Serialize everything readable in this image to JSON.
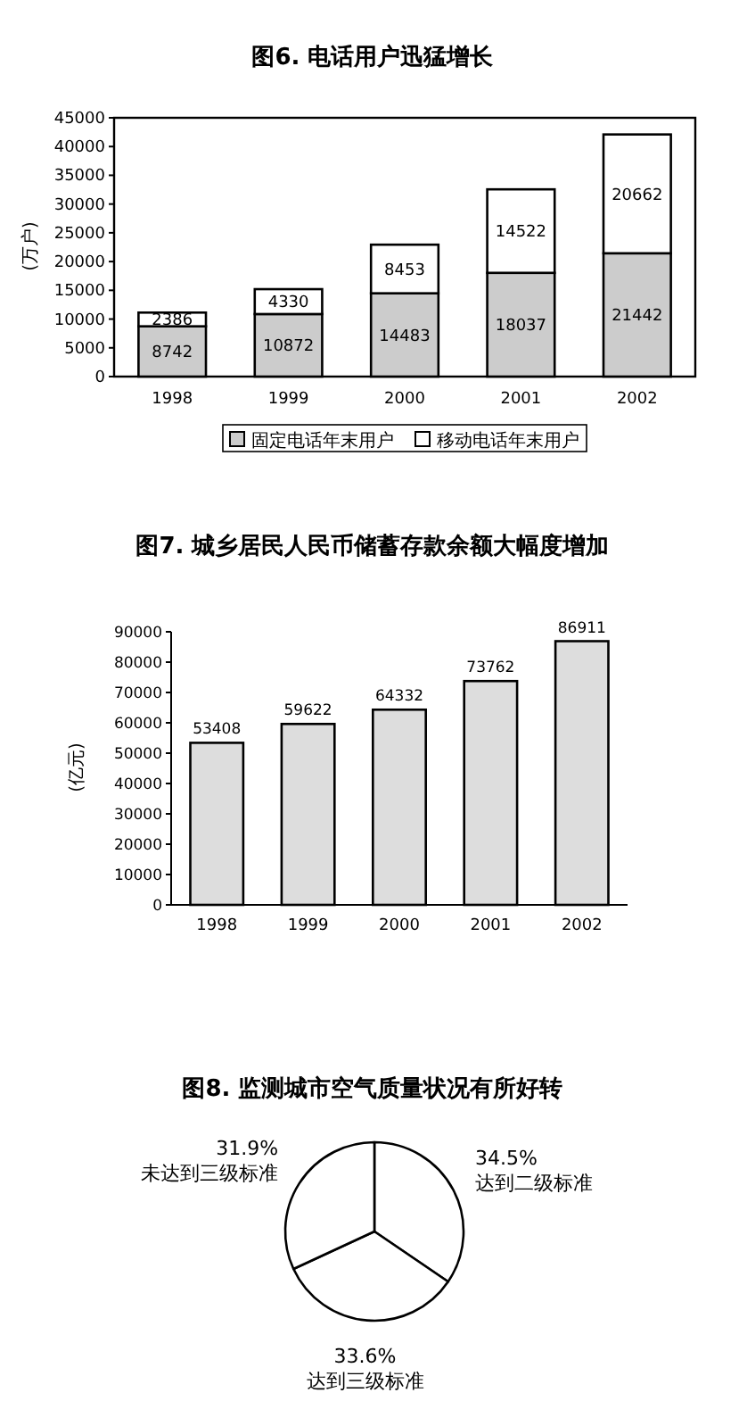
{
  "chart_data": [
    {
      "type": "bar",
      "title": "图6. 电话用户迅猛增长",
      "ylabel": "(万户)",
      "categories": [
        "1998",
        "1999",
        "2000",
        "2001",
        "2002"
      ],
      "stacked": true,
      "series": [
        {
          "name": "固定电话年末用户",
          "color": "#cccccc",
          "values": [
            8742,
            10872,
            14483,
            18037,
            21442
          ]
        },
        {
          "name": "移动电话年末用户",
          "color": "#ffffff",
          "values": [
            2386,
            4330,
            8453,
            14522,
            20662
          ]
        }
      ],
      "ylim": [
        0,
        45000
      ],
      "yticks": [
        0,
        5000,
        10000,
        15000,
        20000,
        25000,
        30000,
        35000,
        40000,
        45000
      ],
      "data_labels": true,
      "legend": "bottom"
    },
    {
      "type": "bar",
      "title": "图7. 城乡居民人民币储蓄存款余额大幅度增加",
      "ylabel": "(亿元)",
      "categories": [
        "1998",
        "1999",
        "2000",
        "2001",
        "2002"
      ],
      "values": [
        53408,
        59622,
        64332,
        73762,
        86911
      ],
      "color": "#dddddd",
      "ylim": [
        0,
        90000
      ],
      "yticks": [
        0,
        10000,
        20000,
        30000,
        40000,
        50000,
        60000,
        70000,
        80000,
        90000
      ],
      "data_labels": true
    },
    {
      "type": "pie",
      "title": "图8. 监测城市空气质量状况有所好转",
      "categories": [
        "达到二级标准",
        "达到三级标准",
        "未达到三级标准"
      ],
      "values": [
        34.5,
        33.6,
        31.9
      ],
      "colors": [
        "#ffffff",
        "#ffffff",
        "#ffffff"
      ],
      "value_labels": [
        "34.5%",
        "33.6%",
        "31.9%"
      ]
    }
  ]
}
